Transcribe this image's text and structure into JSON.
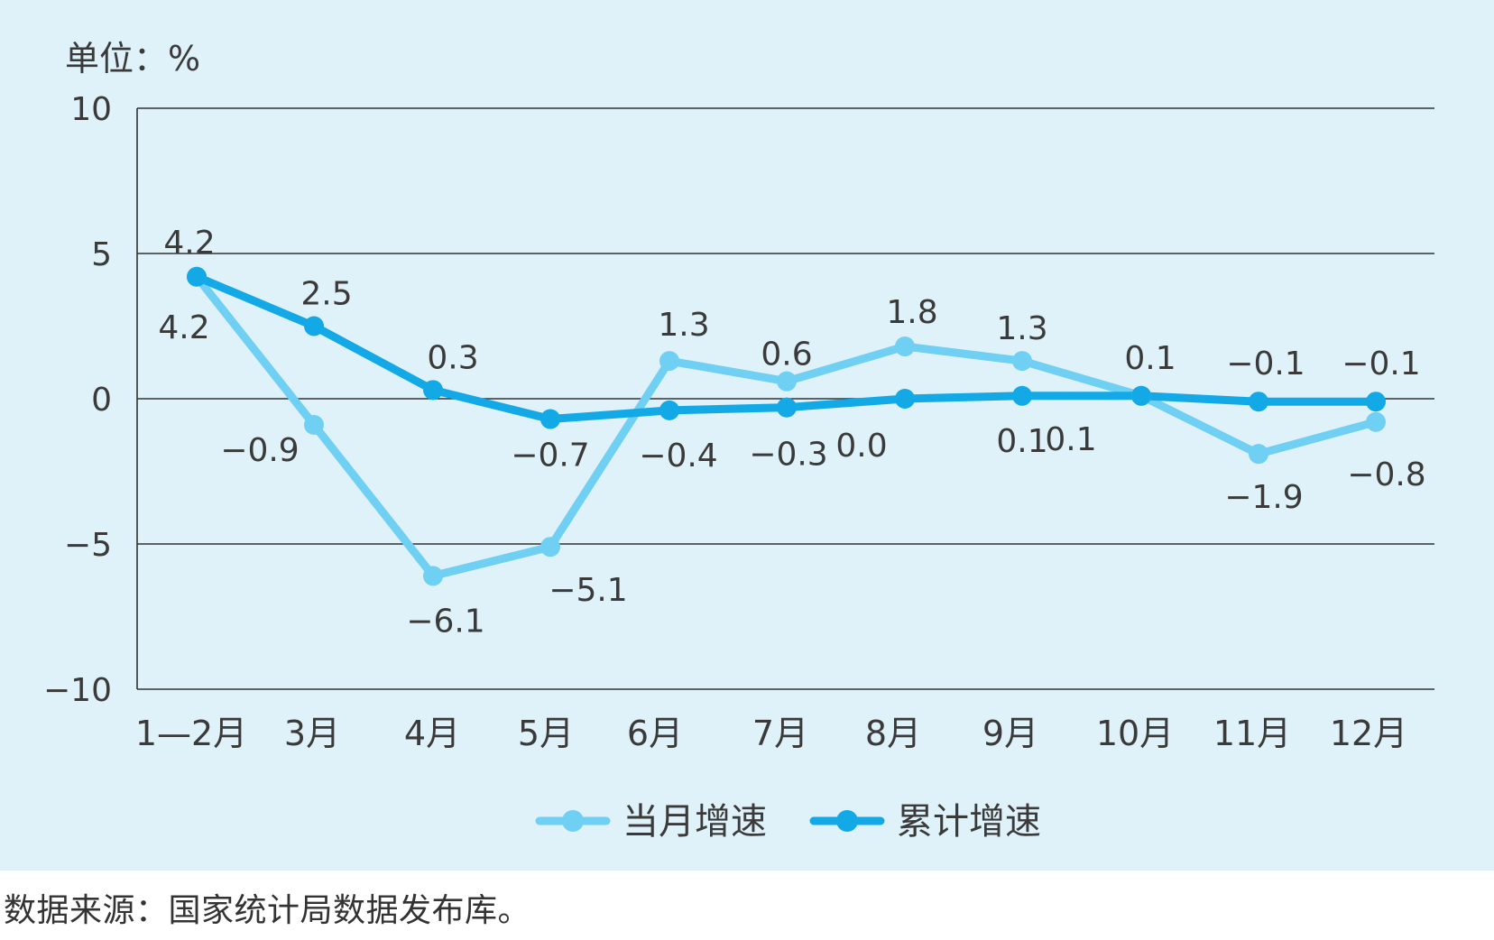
{
  "chart_data": {
    "type": "line",
    "unit_label": "单位：%",
    "categories": [
      "1—2月",
      "3月",
      "4月",
      "5月",
      "6月",
      "7月",
      "8月",
      "9月",
      "10月",
      "11月",
      "12月"
    ],
    "y_ticks": [
      "10",
      "5",
      "0",
      "−5",
      "−10"
    ],
    "ylim": [
      -10,
      10
    ],
    "grid": true,
    "legend_position": "bottom-center",
    "series": [
      {
        "name": "当月增速",
        "color": "#6fd0f3",
        "values": [
          4.2,
          -0.9,
          -6.1,
          -5.1,
          1.3,
          0.6,
          1.8,
          1.3,
          0.1,
          -1.9,
          -0.8
        ],
        "labels": [
          "4.2",
          "−0.9",
          "−6.1",
          "−5.1",
          "1.3",
          "0.6",
          "1.8",
          "1.3",
          "0.1",
          "−1.9",
          "−0.8"
        ]
      },
      {
        "name": "累计增速",
        "color": "#12a9e6",
        "values": [
          4.2,
          2.5,
          0.3,
          -0.7,
          -0.4,
          -0.3,
          0.0,
          0.1,
          0.1,
          -0.1,
          -0.1
        ],
        "labels": [
          "4.2",
          "2.5",
          "0.3",
          "−0.7",
          "−0.4",
          "−0.3",
          "0.0",
          "0.1",
          "0.1",
          "−0.1",
          "−0.1"
        ]
      }
    ]
  },
  "source_note": "数据来源：国家统计局数据发布库。",
  "colors": {
    "panel_background": "#dff1f9",
    "gridline": "#333333"
  }
}
